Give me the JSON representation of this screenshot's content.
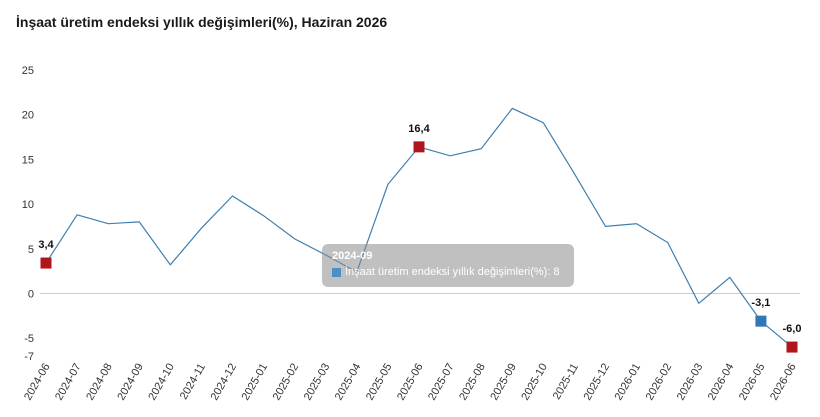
{
  "title": "İnşaat üretim endeksi yıllık değişimleri(%), Haziran 2026",
  "chart_data": {
    "type": "line",
    "title": "İnşaat üretim endeksi yıllık değişimleri(%), Haziran 2026",
    "categories": [
      "2024-06",
      "2024-07",
      "2024-08",
      "2024-09",
      "2024-10",
      "2024-11",
      "2024-12",
      "2025-01",
      "2025-02",
      "2025-03",
      "2025-04",
      "2025-05",
      "2025-06",
      "2025-07",
      "2025-08",
      "2025-09",
      "2025-10",
      "2025-11",
      "2025-12",
      "2026-01",
      "2026-02",
      "2026-03",
      "2026-04",
      "2026-05",
      "2026-06"
    ],
    "series": [
      {
        "name": "İnşaat üretim endeksi yıllık değişimleri(%)",
        "values": [
          3.4,
          8.8,
          7.8,
          8.0,
          3.2,
          7.3,
          10.9,
          8.7,
          6.1,
          4.3,
          2.4,
          12.2,
          16.4,
          15.4,
          16.2,
          20.7,
          19.1,
          13.4,
          7.5,
          7.8,
          5.7,
          -1.1,
          1.8,
          -3.1,
          -6.0
        ],
        "color": "#3f7fae"
      }
    ],
    "yticks": [
      "25",
      "20",
      "15",
      "10",
      "5",
      "0",
      "-5",
      "-7"
    ],
    "ytick_values": [
      25,
      20,
      15,
      10,
      5,
      0,
      -5,
      -7
    ],
    "ylim": [
      -7,
      25
    ],
    "highlights": [
      {
        "index": 0,
        "label": "3,4",
        "color": "#b0151b"
      },
      {
        "index": 12,
        "label": "16,4",
        "color": "#b0151b"
      },
      {
        "index": 23,
        "label": "-3,1",
        "color": "#2f78b5"
      },
      {
        "index": 24,
        "label": "-6,0",
        "color": "#b0151b"
      }
    ],
    "zero_line_color": "#cccccc",
    "tooltip": {
      "date": "2024-09",
      "text": "İnşaat üretim endeksi yıllık değişimleri(%): 8"
    }
  }
}
